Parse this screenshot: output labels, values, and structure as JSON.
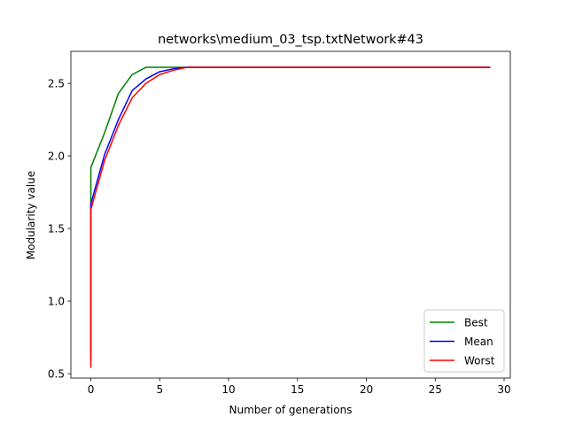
{
  "chart_data": {
    "type": "line",
    "title": "networks\\medium_03_tsp.txtNetwork#43",
    "xlabel": "Number of generations",
    "ylabel": "Modularity value",
    "xlim": [
      -1.45,
      30.45
    ],
    "ylim": [
      0.47,
      2.72
    ],
    "xticks": [
      0,
      5,
      10,
      15,
      20,
      25,
      30
    ],
    "xtick_labels": [
      "0",
      "5",
      "10",
      "15",
      "20",
      "25",
      "30"
    ],
    "yticks": [
      0.5,
      1.0,
      1.5,
      2.0,
      2.5
    ],
    "ytick_labels": [
      "0.5",
      "1.0",
      "1.5",
      "2.0",
      "2.5"
    ],
    "grid": false,
    "legend_position": "lower right",
    "series": [
      {
        "name": "Best",
        "color": "#008000",
        "x": [
          0,
          0,
          1,
          2,
          3,
          4,
          5,
          6,
          7,
          8,
          9,
          10,
          11,
          12,
          13,
          14,
          15,
          16,
          17,
          18,
          19,
          20,
          21,
          22,
          23,
          24,
          25,
          26,
          27,
          28,
          29
        ],
        "y": [
          0.65,
          1.92,
          2.16,
          2.43,
          2.56,
          2.61,
          2.61,
          2.61,
          2.61,
          2.61,
          2.61,
          2.61,
          2.61,
          2.61,
          2.61,
          2.61,
          2.61,
          2.61,
          2.61,
          2.61,
          2.61,
          2.61,
          2.61,
          2.61,
          2.61,
          2.61,
          2.61,
          2.61,
          2.61,
          2.61,
          2.61
        ]
      },
      {
        "name": "Mean",
        "color": "#0000ff",
        "x": [
          0,
          0,
          1,
          2,
          3,
          4,
          5,
          6,
          7,
          8,
          9,
          10,
          11,
          12,
          13,
          14,
          15,
          16,
          17,
          18,
          19,
          20,
          21,
          22,
          23,
          24,
          25,
          26,
          27,
          28,
          29
        ],
        "y": [
          0.6,
          1.67,
          2.01,
          2.25,
          2.45,
          2.53,
          2.58,
          2.6,
          2.61,
          2.61,
          2.61,
          2.61,
          2.61,
          2.61,
          2.61,
          2.61,
          2.61,
          2.61,
          2.61,
          2.61,
          2.61,
          2.61,
          2.61,
          2.61,
          2.61,
          2.61,
          2.61,
          2.61,
          2.61,
          2.61,
          2.61
        ]
      },
      {
        "name": "Worst",
        "color": "#ff0000",
        "x": [
          0,
          0,
          1,
          2,
          3,
          4,
          5,
          6,
          7,
          8,
          9,
          10,
          11,
          12,
          13,
          14,
          15,
          16,
          17,
          18,
          19,
          20,
          21,
          22,
          23,
          24,
          25,
          26,
          27,
          28,
          29
        ],
        "y": [
          0.54,
          1.63,
          1.97,
          2.21,
          2.4,
          2.5,
          2.56,
          2.59,
          2.61,
          2.61,
          2.61,
          2.61,
          2.61,
          2.61,
          2.61,
          2.61,
          2.61,
          2.61,
          2.61,
          2.61,
          2.61,
          2.61,
          2.61,
          2.61,
          2.61,
          2.61,
          2.61,
          2.61,
          2.61,
          2.61,
          2.61
        ]
      }
    ]
  }
}
